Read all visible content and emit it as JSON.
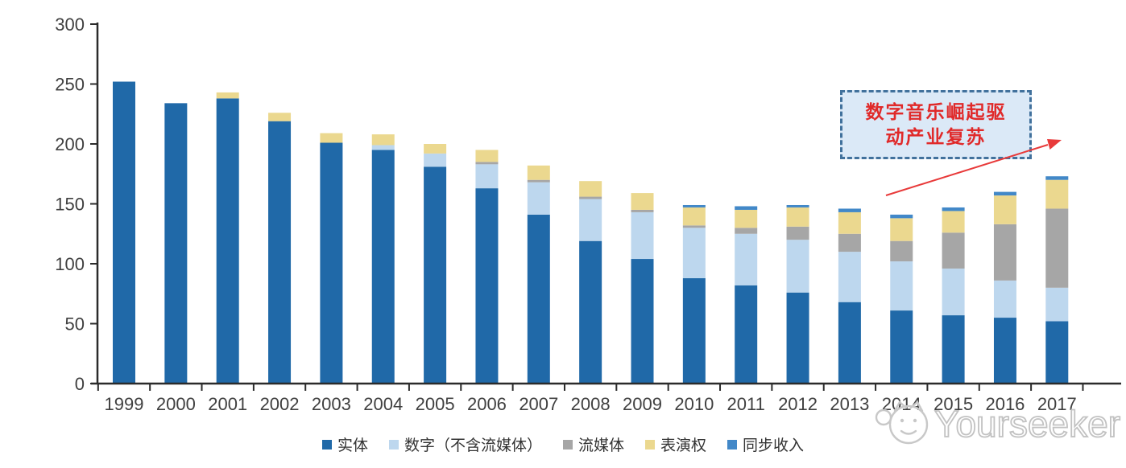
{
  "chart_data": {
    "type": "bar",
    "stacked": true,
    "title": "",
    "xlabel": "",
    "ylabel": "",
    "categories": [
      "1999",
      "2000",
      "2001",
      "2002",
      "2003",
      "2004",
      "2005",
      "2006",
      "2007",
      "2008",
      "2009",
      "2010",
      "2011",
      "2012",
      "2013",
      "2014",
      "2015",
      "2016",
      "2017"
    ],
    "series": [
      {
        "name": "实体",
        "color": "#2069A8",
        "values": [
          252,
          234,
          238,
          219,
          201,
          195,
          181,
          163,
          141,
          119,
          104,
          88,
          82,
          76,
          68,
          61,
          57,
          55,
          52
        ]
      },
      {
        "name": "数字（不含流媒体）",
        "color": "#BDD7EE",
        "values": [
          0,
          0,
          0,
          0,
          0,
          4,
          11,
          20,
          27,
          35,
          39,
          42,
          43,
          44,
          42,
          41,
          39,
          31,
          28
        ]
      },
      {
        "name": "流媒体",
        "color": "#A6A6A6",
        "values": [
          0,
          0,
          0,
          0,
          0,
          0,
          0,
          2,
          2,
          2,
          2,
          2,
          5,
          11,
          15,
          17,
          30,
          47,
          66
        ]
      },
      {
        "name": "表演权",
        "color": "#EBD88F",
        "values": [
          0,
          0,
          5,
          7,
          8,
          9,
          8,
          10,
          12,
          13,
          14,
          15,
          15,
          16,
          18,
          19,
          18,
          24,
          24
        ]
      },
      {
        "name": "同步收入",
        "color": "#4288C8",
        "values": [
          0,
          0,
          0,
          0,
          0,
          0,
          0,
          0,
          0,
          0,
          0,
          2,
          3,
          2,
          3,
          3,
          3,
          3,
          3
        ]
      }
    ],
    "ylim": [
      0,
      300
    ],
    "y_ticks": [
      0,
      50,
      100,
      150,
      200,
      250,
      300
    ],
    "grid": false,
    "legend_position": "bottom",
    "axis_color": "#2b2b2b",
    "tick_label_color": "#404040"
  },
  "annotation": {
    "line1": "数字音乐崛起驱",
    "line2": "动产业复苏",
    "text_color": "#E02A2A",
    "box_fill": "#DBE9F7",
    "border_color": "#41719C",
    "arrow_color": "#E83A3A"
  },
  "watermark": {
    "text": "Yourseeker",
    "color": "#C6C6C6"
  }
}
